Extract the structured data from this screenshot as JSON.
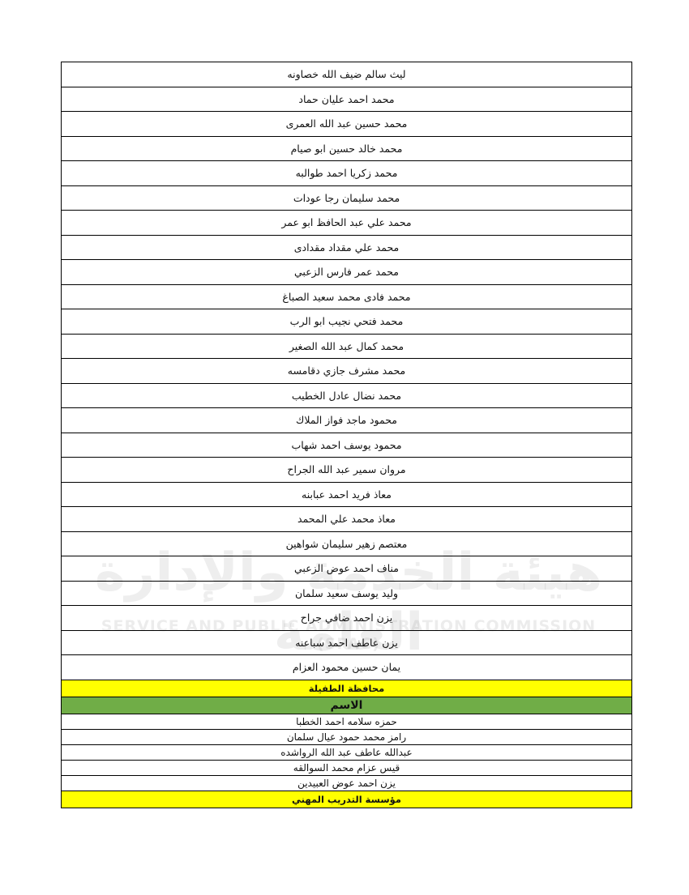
{
  "watermark": {
    "arabic": "هيئة الخدمة والإدارة العامة",
    "english": "SERVICE AND PUBLIC ADMINISTRATION COMMISSION (SPAC)"
  },
  "names_top": [
    "ليث سالم ضيف الله خصاونه",
    "محمد احمد عليان حماد",
    "محمد حسين عبد الله العمرى",
    "محمد خالد حسين ابو صيام",
    "محمد زكريا احمد طوالبه",
    "محمد سليمان رجا عودات",
    "محمد علي عبد الحافظ ابو عمر",
    "محمد علي مقداد مقدادى",
    "محمد عمر فارس الزعبي",
    "محمد فادى محمد  سعيد الصباغ",
    "محمد فتحي نجيب ابو الرب",
    "محمد كمال عبد الله الصغير",
    "محمد مشرف جازي دقامسه",
    "محمد نضال عادل الخطيب",
    "محمود ماجد فواز الملاك",
    "محمود يوسف احمد شهاب",
    "مروان سمير عبد الله الجراح",
    "معاذ فريد احمد عبابنه",
    "معاذ محمد علي المحمد",
    "معتصم زهير سليمان شواهين",
    "مناف احمد عوض الزعبي",
    "وليد يوسف سعيد سلمان",
    "يزن احمد ضافي جراح",
    "يزن عاطف احمد سباعنه",
    "يمان حسين محمود العزام"
  ],
  "section_tafila": {
    "title": "محافظة الطفيلة",
    "header": "الاسم",
    "names": [
      "حمزه سلامه احمد الخطبا",
      "رامز محمد حمود عيال سلمان",
      "عبدالله عاطف عبد الله الرواشده",
      "قيس عزام محمد السوالقه",
      "يزن احمد عوض العبيدين"
    ]
  },
  "section_vocational": {
    "title": "مؤسسة التدريب المهني"
  },
  "colors": {
    "yellow": "#ffff00",
    "green": "#70ad47"
  }
}
